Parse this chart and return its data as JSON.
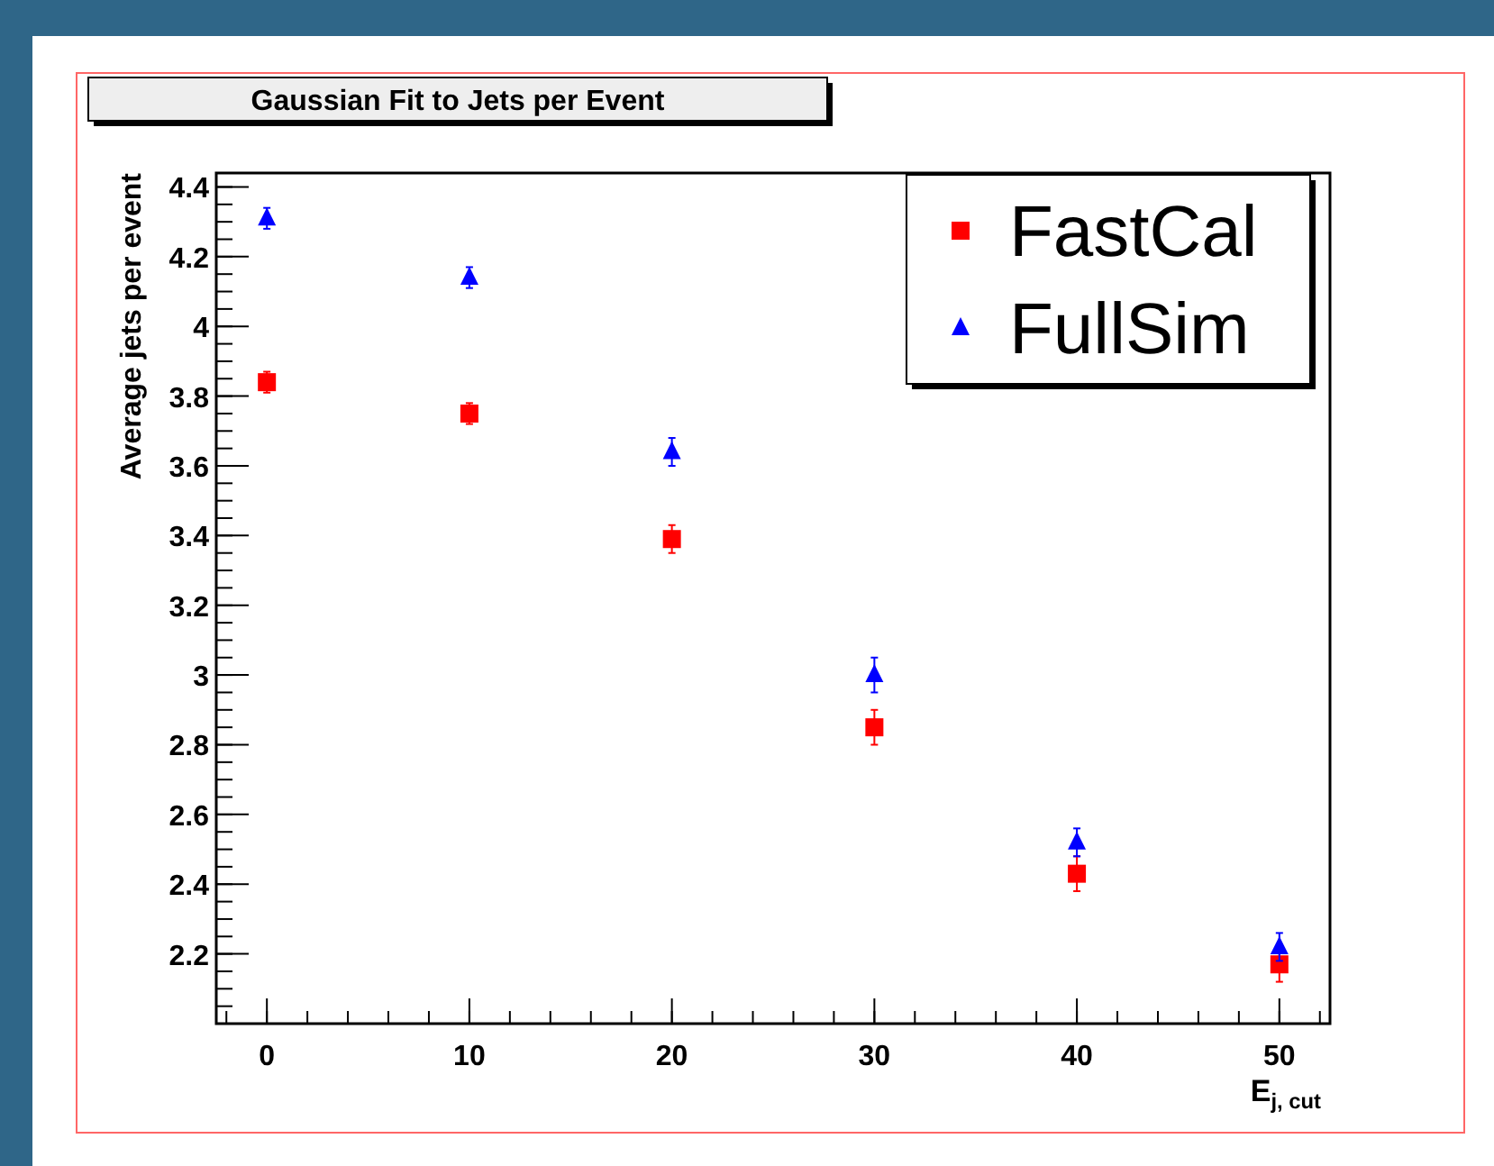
{
  "chart_data": {
    "type": "scatter",
    "title": "Gaussian Fit to Jets per Event",
    "xlabel": "E$_{j, cut}$",
    "ylabel": "Average jets per event",
    "xlim": [
      -2.5,
      52.5
    ],
    "xticks": [
      0,
      10,
      20,
      30,
      40,
      50
    ],
    "ylim": [
      2.0,
      4.44
    ],
    "yticks": [
      2.2,
      2.4,
      2.6,
      2.8,
      3,
      3.2,
      3.4,
      3.6,
      3.8,
      4,
      4.2,
      4.4
    ],
    "x": [
      0,
      10,
      20,
      30,
      40,
      50
    ],
    "legend": "top right",
    "grid": false,
    "series": [
      {
        "name": "FastCal",
        "color": "#ff0000",
        "marker": "square",
        "values": [
          3.84,
          3.75,
          3.39,
          2.85,
          2.43,
          2.17
        ],
        "errors": [
          0.03,
          0.03,
          0.04,
          0.05,
          0.05,
          0.05
        ]
      },
      {
        "name": "FullSim",
        "color": "#0000ff",
        "marker": "triangle",
        "values": [
          4.31,
          4.14,
          3.64,
          3.0,
          2.52,
          2.22
        ],
        "errors": [
          0.03,
          0.03,
          0.04,
          0.05,
          0.04,
          0.04
        ]
      }
    ]
  }
}
